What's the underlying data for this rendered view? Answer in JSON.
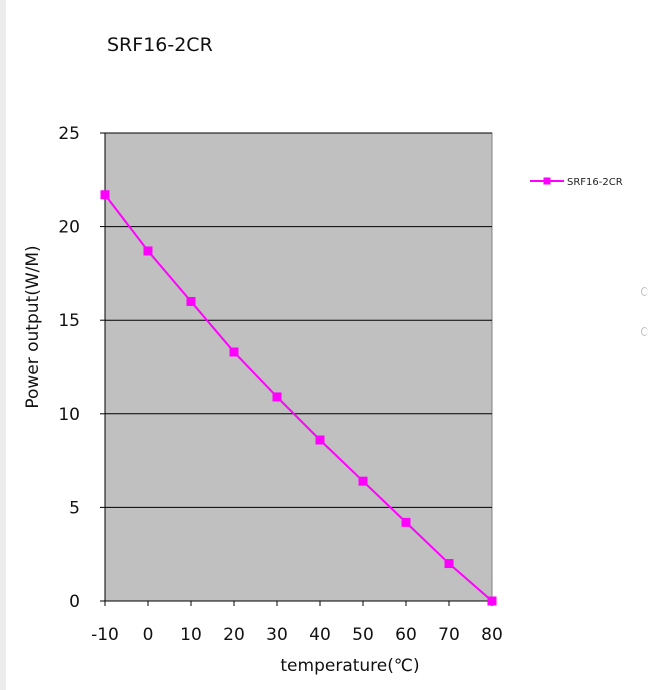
{
  "chart_data": {
    "type": "line",
    "title": "SRF16-2CR",
    "xlabel": "temperature(℃)",
    "ylabel": "Power output(W/M)",
    "x": [
      -10,
      0,
      10,
      20,
      30,
      40,
      50,
      60,
      70,
      80
    ],
    "series": [
      {
        "name": "SRF16-2CR",
        "values": [
          21.7,
          18.7,
          16.0,
          13.3,
          10.9,
          8.6,
          6.4,
          4.2,
          2.0,
          0.0
        ]
      }
    ],
    "xticks": [
      "-10",
      "0",
      "10",
      "20",
      "30",
      "40",
      "50",
      "60",
      "70",
      "80"
    ],
    "yticks": [
      "0",
      "5",
      "10",
      "15",
      "20",
      "25"
    ],
    "xlim": [
      -10,
      80
    ],
    "ylim": [
      0,
      25
    ],
    "grid": "horizontal",
    "legend": "right",
    "colors": {
      "series": "#ff00ff",
      "plot_background": "#c0c0c0",
      "gridline": "#000000"
    }
  }
}
